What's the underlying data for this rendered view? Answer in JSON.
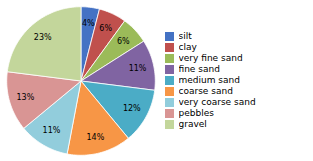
{
  "chart_data": {
    "type": "pie",
    "categories": [
      "silt",
      "clay",
      "very fine sand",
      "fine sand",
      "medium sand",
      "coarse sand",
      "very coarse sand",
      "pebbles",
      "gravel"
    ],
    "values": [
      4,
      6,
      6,
      11,
      12,
      14,
      11,
      13,
      23
    ],
    "value_labels": [
      "4%",
      "6%",
      "6%",
      "11%",
      "12%",
      "14%",
      "11%",
      "13%",
      "23%"
    ],
    "colors": [
      "#4472C4",
      "#C0504D",
      "#9BBB59",
      "#8064A2",
      "#4BACC6",
      "#F79646",
      "#92CDDC",
      "#D99594",
      "#C3D69B"
    ],
    "data_labels": true,
    "legend": "right"
  }
}
